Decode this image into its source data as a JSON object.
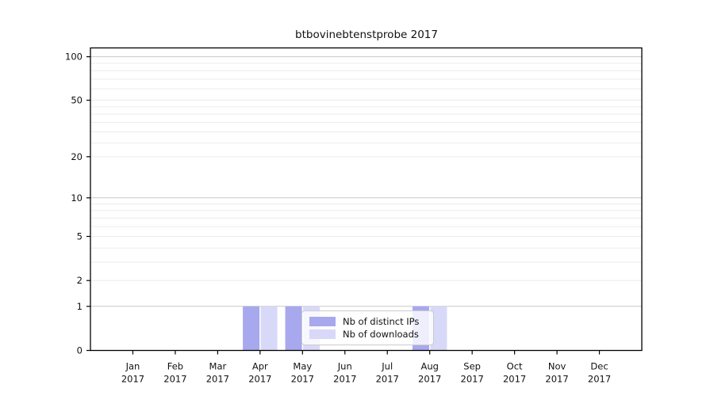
{
  "chart_data": {
    "type": "bar",
    "title": "btbovinebtenstprobe 2017",
    "categories": [
      "Jan",
      "Feb",
      "Mar",
      "Apr",
      "May",
      "Jun",
      "Jul",
      "Aug",
      "Sep",
      "Oct",
      "Nov",
      "Dec"
    ],
    "x_year_label": "2017",
    "series": [
      {
        "name": "Nb of distinct IPs",
        "color": "#a8a8ee",
        "values": [
          0,
          0,
          0,
          1,
          1,
          0,
          0,
          1,
          0,
          0,
          0,
          0
        ]
      },
      {
        "name": "Nb of downloads",
        "color": "#d8d8f8",
        "values": [
          0,
          0,
          0,
          1,
          1,
          0,
          0,
          1,
          0,
          0,
          0,
          0
        ]
      }
    ],
    "y_scale": "log10(value+1)",
    "ylim": [
      0,
      115
    ],
    "y_tick_labels": [
      0,
      1,
      2,
      5,
      10,
      20,
      50,
      100
    ],
    "gridlines_dark": [
      1,
      10,
      100
    ],
    "gridlines_light": [
      2,
      3,
      4,
      5,
      6,
      7,
      8,
      9,
      20,
      25,
      30,
      35,
      40,
      45,
      50,
      60,
      70,
      80,
      90
    ],
    "grid": true,
    "legend_position": "lower center"
  },
  "colors": {
    "background": "#ffffff",
    "axis": "#000000",
    "grid_dark": "#c9c9c9",
    "grid_light": "#ececec",
    "text": "#111111"
  }
}
